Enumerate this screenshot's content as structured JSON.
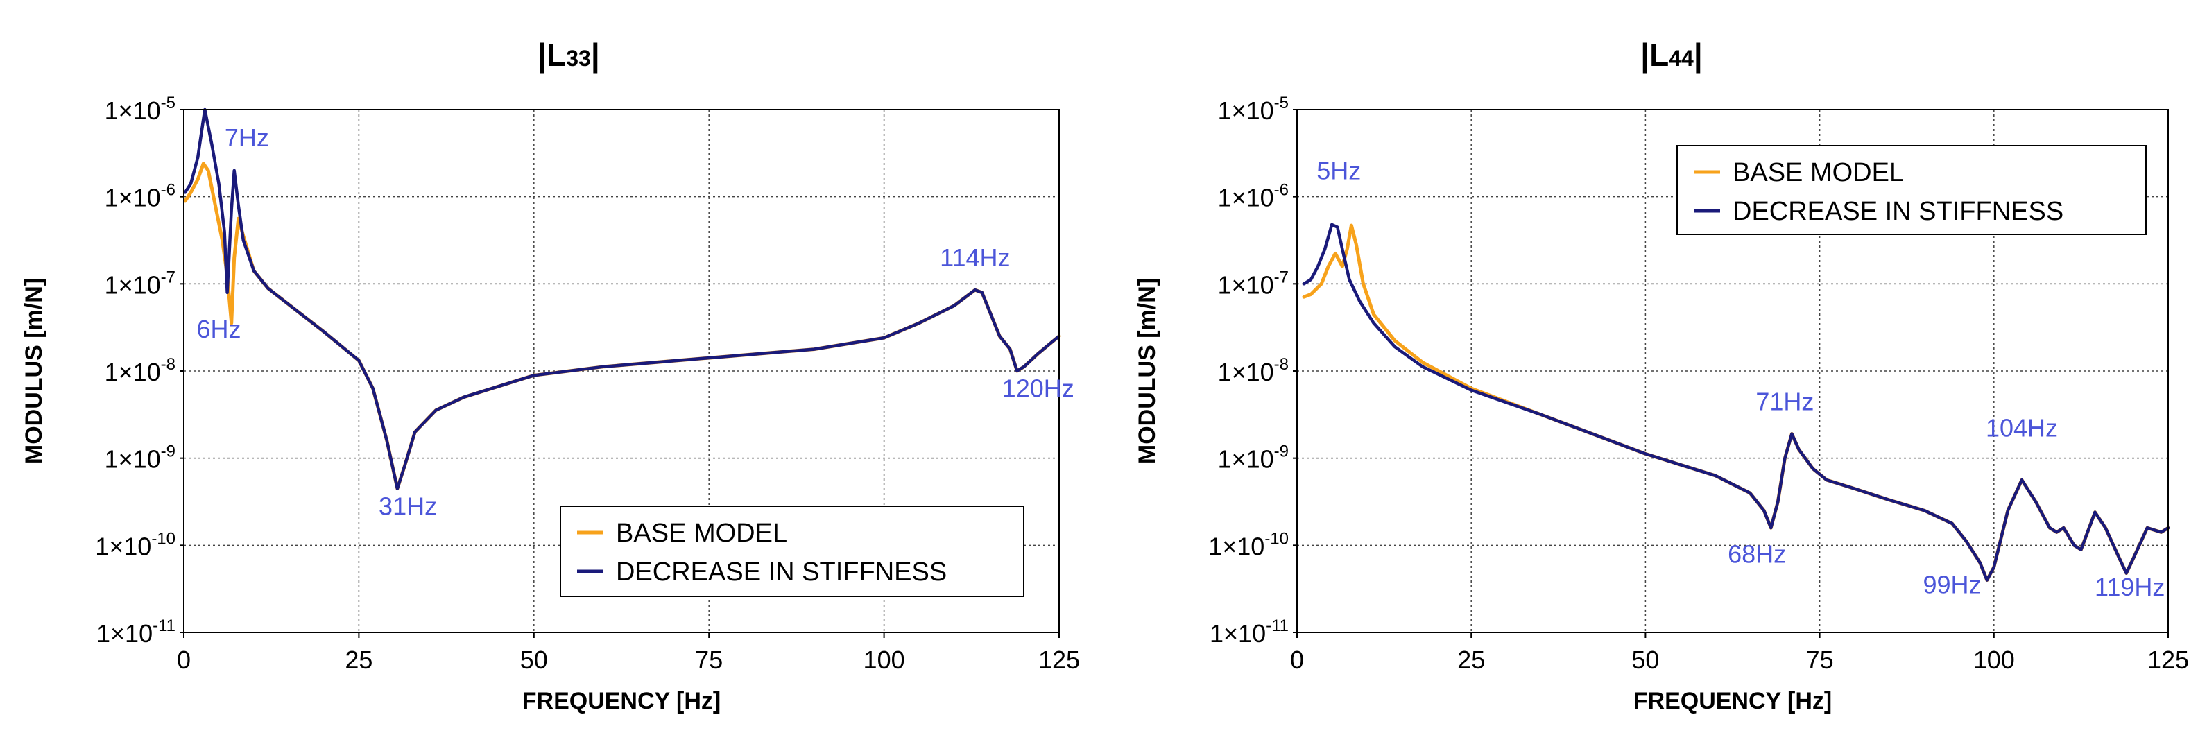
{
  "chart_data": [
    {
      "type": "line",
      "title": "|L33|",
      "title_main": "L",
      "title_sub": "33",
      "xlabel": "FREQUENCY [Hz]",
      "ylabel": "MODULUS [m/N]",
      "xlim": [
        0,
        125
      ],
      "ylim_exp": [
        -11,
        -5
      ],
      "xticks": [
        0,
        25,
        50,
        75,
        100,
        125
      ],
      "xtick_labels": [
        "0",
        "25",
        "50",
        "75",
        "100",
        "125"
      ],
      "ytick_exps": [
        -5,
        -6,
        -7,
        -8,
        -9,
        -10,
        -11
      ],
      "ytick_base": "1×10",
      "ytick_sup": [
        "-5",
        "-6",
        "-7",
        "-8",
        "-9",
        "-10",
        "-11"
      ],
      "grid": true,
      "legend_position": "bottom-right",
      "series": [
        {
          "name": "BASE MODEL",
          "color": "#f7a21b",
          "points": [
            [
              0.2,
              -6.05
            ],
            [
              1,
              -5.95
            ],
            [
              2,
              -5.8
            ],
            [
              2.8,
              -5.62
            ],
            [
              3.5,
              -5.7
            ],
            [
              4.5,
              -6.1
            ],
            [
              5.5,
              -6.5
            ],
            [
              6.2,
              -6.9
            ],
            [
              6.8,
              -7.45
            ],
            [
              7.2,
              -6.7
            ],
            [
              7.8,
              -6.25
            ],
            [
              8.5,
              -6.45
            ],
            [
              10,
              -6.85
            ],
            [
              12,
              -7.05
            ],
            [
              16,
              -7.3
            ],
            [
              20,
              -7.55
            ],
            [
              25,
              -7.88
            ],
            [
              27,
              -8.2
            ],
            [
              29,
              -8.8
            ],
            [
              30.5,
              -9.35
            ],
            [
              31.5,
              -9.1
            ],
            [
              33,
              -8.7
            ],
            [
              36,
              -8.45
            ],
            [
              40,
              -8.3
            ],
            [
              50,
              -8.05
            ],
            [
              60,
              -7.95
            ],
            [
              75,
              -7.85
            ],
            [
              90,
              -7.75
            ],
            [
              100,
              -7.62
            ],
            [
              105,
              -7.45
            ],
            [
              110,
              -7.25
            ],
            [
              113,
              -7.07
            ],
            [
              114,
              -7.1
            ],
            [
              115,
              -7.3
            ],
            [
              116.5,
              -7.6
            ],
            [
              118,
              -7.75
            ],
            [
              119,
              -8.0
            ],
            [
              120,
              -7.95
            ],
            [
              122,
              -7.8
            ],
            [
              125,
              -7.6
            ]
          ]
        },
        {
          "name": "DECREASE IN STIFFNESS",
          "color": "#1a1a7a",
          "points": [
            [
              0.2,
              -5.95
            ],
            [
              1,
              -5.85
            ],
            [
              2,
              -5.55
            ],
            [
              3,
              -5.0
            ],
            [
              4,
              -5.4
            ],
            [
              5,
              -5.85
            ],
            [
              5.8,
              -6.4
            ],
            [
              6.2,
              -7.1
            ],
            [
              6.8,
              -6.15
            ],
            [
              7.2,
              -5.7
            ],
            [
              7.8,
              -6.1
            ],
            [
              8.5,
              -6.5
            ],
            [
              10,
              -6.85
            ],
            [
              12,
              -7.05
            ],
            [
              16,
              -7.3
            ],
            [
              20,
              -7.55
            ],
            [
              25,
              -7.88
            ],
            [
              27,
              -8.2
            ],
            [
              29,
              -8.8
            ],
            [
              30.5,
              -9.35
            ],
            [
              31.5,
              -9.1
            ],
            [
              33,
              -8.7
            ],
            [
              36,
              -8.45
            ],
            [
              40,
              -8.3
            ],
            [
              50,
              -8.05
            ],
            [
              60,
              -7.95
            ],
            [
              75,
              -7.85
            ],
            [
              90,
              -7.75
            ],
            [
              100,
              -7.62
            ],
            [
              105,
              -7.45
            ],
            [
              110,
              -7.25
            ],
            [
              113,
              -7.07
            ],
            [
              114,
              -7.1
            ],
            [
              115,
              -7.3
            ],
            [
              116.5,
              -7.6
            ],
            [
              118,
              -7.75
            ],
            [
              119,
              -8.0
            ],
            [
              120,
              -7.95
            ],
            [
              122,
              -7.8
            ],
            [
              125,
              -7.6
            ]
          ]
        }
      ],
      "annotations": [
        {
          "text": "7Hz",
          "x": 9,
          "y": -5.42
        },
        {
          "text": "6Hz",
          "x": 5,
          "y": -7.62
        },
        {
          "text": "31Hz",
          "x": 32,
          "y": -9.65
        },
        {
          "text": "114Hz",
          "x": 113,
          "y": -6.8
        },
        {
          "text": "120Hz",
          "x": 122,
          "y": -8.3
        }
      ]
    },
    {
      "type": "line",
      "title": "|L44|",
      "title_main": "L",
      "title_sub": "44",
      "xlabel": "FREQUENCY [Hz]",
      "ylabel": "MODULUS [m/N]",
      "xlim": [
        0,
        125
      ],
      "ylim_exp": [
        -11,
        -5
      ],
      "xticks": [
        0,
        25,
        50,
        75,
        100,
        125
      ],
      "xtick_labels": [
        "0",
        "25",
        "50",
        "75",
        "100",
        "125"
      ],
      "ytick_exps": [
        -5,
        -6,
        -7,
        -8,
        -9,
        -10,
        -11
      ],
      "ytick_base": "1×10",
      "ytick_sup": [
        "-5",
        "-6",
        "-7",
        "-8",
        "-9",
        "-10",
        "-11"
      ],
      "grid": true,
      "legend_position": "top-right",
      "series": [
        {
          "name": "BASE MODEL",
          "color": "#f7a21b",
          "points": [
            [
              1,
              -7.15
            ],
            [
              2,
              -7.12
            ],
            [
              3.5,
              -7.0
            ],
            [
              4.5,
              -6.8
            ],
            [
              5.5,
              -6.65
            ],
            [
              6.5,
              -6.8
            ],
            [
              7.2,
              -6.6
            ],
            [
              7.8,
              -6.33
            ],
            [
              8.5,
              -6.55
            ],
            [
              9.5,
              -7.0
            ],
            [
              11,
              -7.35
            ],
            [
              14,
              -7.65
            ],
            [
              18,
              -7.9
            ],
            [
              25,
              -8.2
            ],
            [
              35,
              -8.5
            ],
            [
              50,
              -8.95
            ],
            [
              60,
              -9.2
            ],
            [
              65,
              -9.4
            ],
            [
              67,
              -9.6
            ],
            [
              68,
              -9.8
            ],
            [
              69,
              -9.5
            ],
            [
              70,
              -9.0
            ],
            [
              71,
              -8.72
            ],
            [
              72,
              -8.9
            ],
            [
              74,
              -9.12
            ],
            [
              76,
              -9.25
            ],
            [
              80,
              -9.35
            ],
            [
              85,
              -9.48
            ],
            [
              90,
              -9.6
            ],
            [
              94,
              -9.75
            ],
            [
              96,
              -9.95
            ],
            [
              98,
              -10.2
            ],
            [
              99,
              -10.4
            ],
            [
              100,
              -10.25
            ],
            [
              102,
              -9.6
            ],
            [
              104,
              -9.25
            ],
            [
              106,
              -9.5
            ],
            [
              108,
              -9.8
            ],
            [
              109,
              -9.85
            ],
            [
              110,
              -9.8
            ],
            [
              111.5,
              -10.0
            ],
            [
              112.5,
              -10.05
            ],
            [
              114.5,
              -9.62
            ],
            [
              116,
              -9.8
            ],
            [
              118,
              -10.15
            ],
            [
              119,
              -10.32
            ],
            [
              120,
              -10.15
            ],
            [
              122,
              -9.8
            ],
            [
              124,
              -9.85
            ],
            [
              125,
              -9.8
            ]
          ]
        },
        {
          "name": "DECREASE IN STIFFNESS",
          "color": "#1a1a7a",
          "points": [
            [
              1,
              -7.0
            ],
            [
              2,
              -6.95
            ],
            [
              3,
              -6.8
            ],
            [
              4,
              -6.6
            ],
            [
              5,
              -6.32
            ],
            [
              5.8,
              -6.35
            ],
            [
              6.5,
              -6.6
            ],
            [
              7.5,
              -6.95
            ],
            [
              9,
              -7.2
            ],
            [
              11,
              -7.45
            ],
            [
              14,
              -7.72
            ],
            [
              18,
              -7.95
            ],
            [
              25,
              -8.22
            ],
            [
              35,
              -8.5
            ],
            [
              50,
              -8.95
            ],
            [
              60,
              -9.2
            ],
            [
              65,
              -9.4
            ],
            [
              67,
              -9.6
            ],
            [
              68,
              -9.8
            ],
            [
              69,
              -9.5
            ],
            [
              70,
              -9.0
            ],
            [
              71,
              -8.72
            ],
            [
              72,
              -8.9
            ],
            [
              74,
              -9.12
            ],
            [
              76,
              -9.25
            ],
            [
              80,
              -9.35
            ],
            [
              85,
              -9.48
            ],
            [
              90,
              -9.6
            ],
            [
              94,
              -9.75
            ],
            [
              96,
              -9.95
            ],
            [
              98,
              -10.2
            ],
            [
              99,
              -10.4
            ],
            [
              100,
              -10.25
            ],
            [
              102,
              -9.6
            ],
            [
              104,
              -9.25
            ],
            [
              106,
              -9.5
            ],
            [
              108,
              -9.8
            ],
            [
              109,
              -9.85
            ],
            [
              110,
              -9.8
            ],
            [
              111.5,
              -10.0
            ],
            [
              112.5,
              -10.05
            ],
            [
              114.5,
              -9.62
            ],
            [
              116,
              -9.8
            ],
            [
              118,
              -10.15
            ],
            [
              119,
              -10.32
            ],
            [
              120,
              -10.15
            ],
            [
              122,
              -9.8
            ],
            [
              124,
              -9.85
            ],
            [
              125,
              -9.8
            ]
          ]
        }
      ],
      "annotations": [
        {
          "text": "5Hz",
          "x": 6,
          "y": -5.8
        },
        {
          "text": "71Hz",
          "x": 70,
          "y": -8.45
        },
        {
          "text": "68Hz",
          "x": 66,
          "y": -10.2
        },
        {
          "text": "104Hz",
          "x": 104,
          "y": -8.75
        },
        {
          "text": "99Hz",
          "x": 94,
          "y": -10.55
        },
        {
          "text": "119Hz",
          "x": 119.5,
          "y": -10.58
        }
      ]
    }
  ]
}
